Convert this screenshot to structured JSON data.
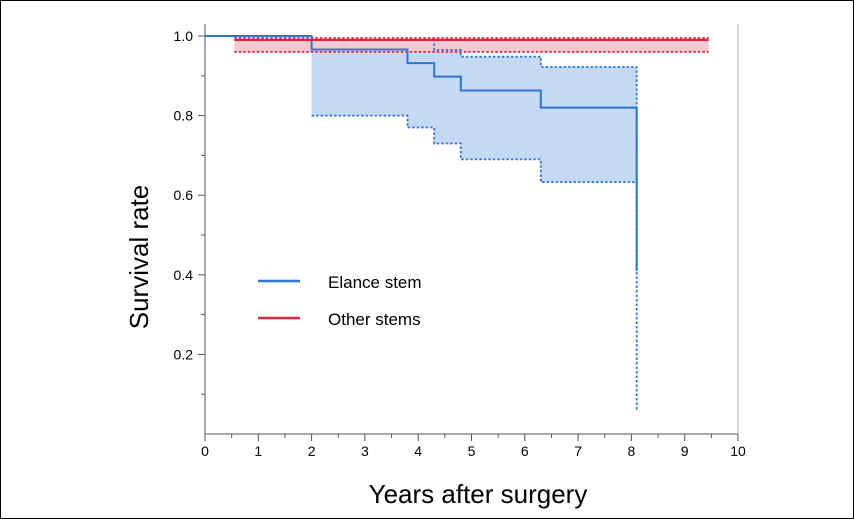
{
  "chart_data": {
    "type": "line",
    "subtype": "kaplan-meier step survival curves with confidence bands",
    "xlabel": "Years after surgery",
    "ylabel": "Survival rate",
    "xlim": [
      0,
      10
    ],
    "ylim": [
      0,
      1.0
    ],
    "x_ticks": [
      "0",
      "1",
      "2",
      "3",
      "4",
      "5",
      "6",
      "7",
      "8",
      "9",
      "10"
    ],
    "y_ticks": [
      "0.2",
      "0.4",
      "0.6",
      "0.8",
      "1.0"
    ],
    "legend_position": "center-left",
    "grid": false,
    "series": [
      {
        "name": "Elance stem",
        "color": "#2e75d6",
        "band_color": "#c5d8f4",
        "survival": {
          "x": [
            0,
            2.0,
            2.0,
            3.8,
            3.8,
            4.3,
            4.3,
            4.8,
            4.8,
            6.3,
            6.3,
            8.1,
            8.1
          ],
          "y": [
            1.0,
            1.0,
            0.966,
            0.966,
            0.932,
            0.932,
            0.898,
            0.898,
            0.863,
            0.863,
            0.82,
            0.82,
            0.41
          ]
        },
        "lower_ci": {
          "x": [
            2.0,
            3.8,
            3.8,
            4.3,
            4.3,
            4.8,
            4.8,
            6.3,
            6.3,
            8.1,
            8.1
          ],
          "y": [
            0.8,
            0.8,
            0.77,
            0.77,
            0.73,
            0.73,
            0.69,
            0.69,
            0.633,
            0.633,
            0.06
          ]
        },
        "upper_ci": {
          "x": [
            2.0,
            4.3,
            4.3,
            4.8,
            4.8,
            6.3,
            6.3,
            8.1,
            8.1
          ],
          "y": [
            0.99,
            0.99,
            0.965,
            0.965,
            0.948,
            0.948,
            0.922,
            0.922,
            0.41
          ]
        }
      },
      {
        "name": "Other stems",
        "color": "#e0243c",
        "band_color": "#f6c9d1",
        "survival": {
          "x": [
            0.55,
            9.45
          ],
          "y": [
            0.99,
            0.99
          ]
        },
        "lower_ci": {
          "x": [
            0.55,
            9.45
          ],
          "y": [
            0.96,
            0.96
          ]
        },
        "upper_ci": {
          "x": [
            0.55,
            9.45
          ],
          "y": [
            0.995,
            0.995
          ]
        }
      }
    ]
  }
}
